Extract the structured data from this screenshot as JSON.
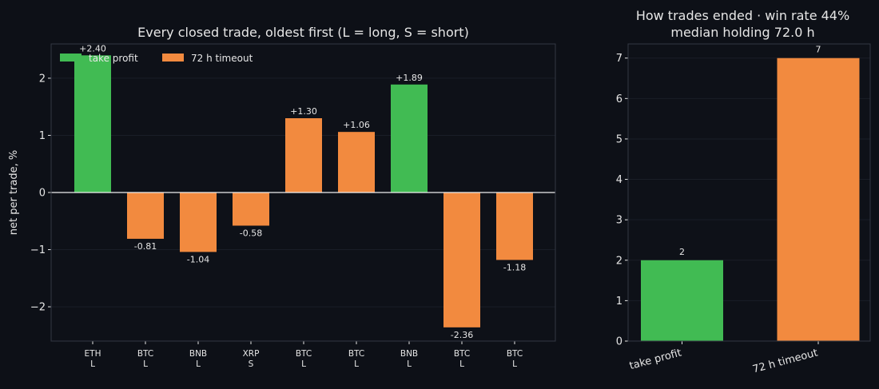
{
  "colors": {
    "background": "#0d1017",
    "plot_bg": "#0e1118",
    "spine": "#333843",
    "text": "#e6e6e6",
    "take_profit": "#41bb53",
    "timeout": "#f28a3f"
  },
  "chart_data": [
    {
      "type": "bar",
      "title": "Every closed trade, oldest first (L = long, S = short)",
      "xlabel": "",
      "ylabel": "net per trade, %",
      "ylim": [
        -2.6,
        2.6
      ],
      "yticks": [
        -2,
        -1,
        0,
        1,
        2
      ],
      "ytick_labels": [
        "−2",
        "−1",
        "0",
        "1",
        "2"
      ],
      "grid": true,
      "legend_position": "top-left",
      "legend": [
        {
          "label": "take profit",
          "color_key": "take_profit"
        },
        {
          "label": "72 h timeout",
          "color_key": "timeout"
        }
      ],
      "categories": [
        {
          "symbol": "ETH",
          "side": "L"
        },
        {
          "symbol": "BTC",
          "side": "L"
        },
        {
          "symbol": "BNB",
          "side": "L"
        },
        {
          "symbol": "XRP",
          "side": "S"
        },
        {
          "symbol": "BTC",
          "side": "L"
        },
        {
          "symbol": "BTC",
          "side": "L"
        },
        {
          "symbol": "BNB",
          "side": "L"
        },
        {
          "symbol": "BTC",
          "side": "L"
        },
        {
          "symbol": "BTC",
          "side": "L"
        }
      ],
      "values": [
        2.4,
        -0.81,
        -1.04,
        -0.58,
        1.3,
        1.06,
        1.89,
        -2.36,
        -1.18
      ],
      "data_labels": [
        "+2.40",
        "-0.81",
        "-1.04",
        "-0.58",
        "+1.30",
        "+1.06",
        "+1.89",
        "-2.36",
        "-1.18"
      ],
      "outcome": [
        "take_profit",
        "timeout",
        "timeout",
        "timeout",
        "timeout",
        "timeout",
        "take_profit",
        "timeout",
        "timeout"
      ]
    },
    {
      "type": "bar",
      "title": "How trades ended · win rate 44%",
      "subtitle": "median holding 72.0 h",
      "xlabel": "",
      "ylabel": "",
      "ylim": [
        0,
        7.35
      ],
      "yticks": [
        0,
        1,
        2,
        3,
        4,
        5,
        6,
        7
      ],
      "grid": true,
      "categories": [
        "take profit",
        "72 h timeout"
      ],
      "values": [
        2,
        7
      ],
      "data_labels": [
        "2",
        "7"
      ],
      "color_keys": [
        "take_profit",
        "timeout"
      ]
    }
  ]
}
